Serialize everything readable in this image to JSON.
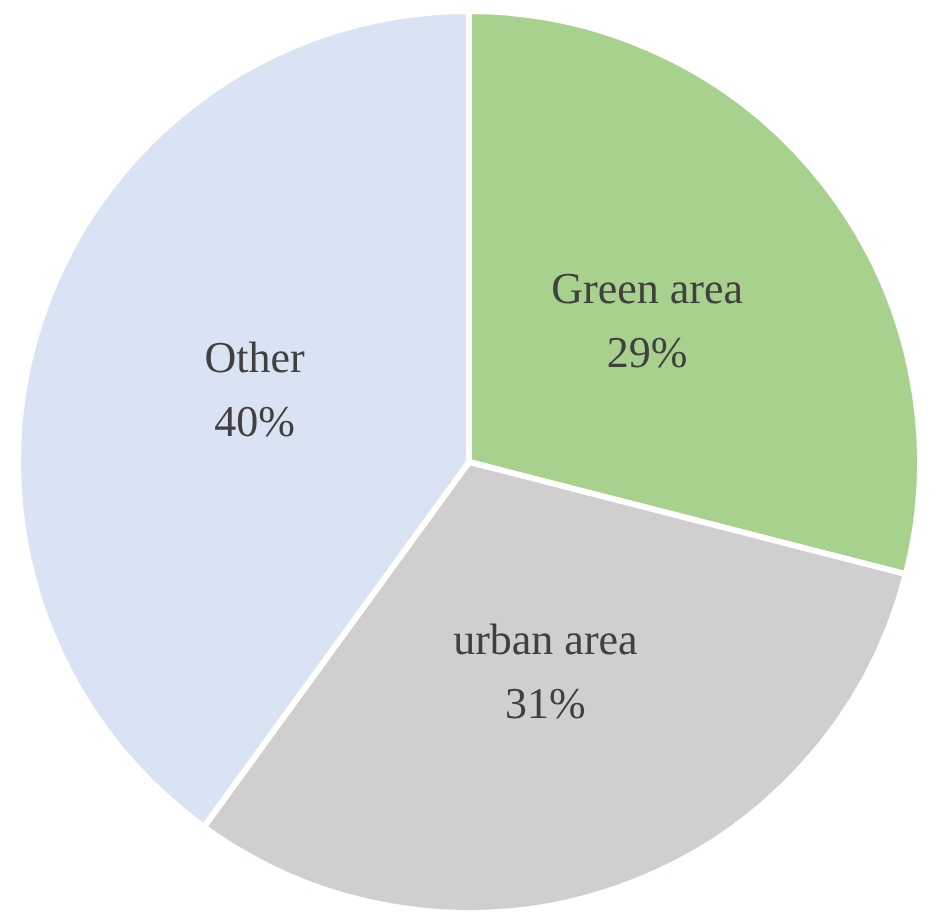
{
  "chart_data": {
    "type": "pie",
    "categories": [
      "Green area",
      "urban area",
      "Other"
    ],
    "values": [
      29,
      31,
      40
    ],
    "colors": [
      "#a9d18e",
      "#d0cece",
      "#dae3f3"
    ],
    "value_labels": [
      "29%",
      "31%",
      "40%"
    ],
    "legend": false
  }
}
